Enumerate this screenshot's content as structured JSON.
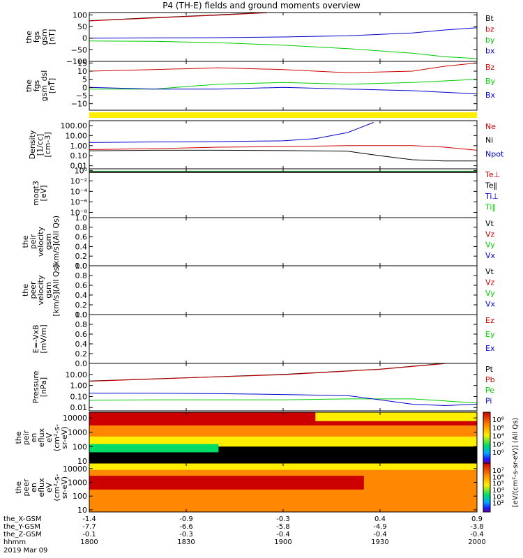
{
  "title": "P4 (TH-E) fields and ground moments overview",
  "x_axis": {
    "rows": [
      {
        "label": "the_X-GSM",
        "values": [
          "-1.4",
          "-0.9",
          "-0.3",
          "0.4",
          "0.9"
        ]
      },
      {
        "label": "the_Y-GSM",
        "values": [
          "-7.7",
          "-6.6",
          "-5.8",
          "-4.9",
          "-3.8"
        ]
      },
      {
        "label": "the_Z-GSM",
        "values": [
          "-0.1",
          "-0.3",
          "-0.4",
          "-0.4",
          "-0.4"
        ]
      },
      {
        "label": "hhmm",
        "values": [
          "1800",
          "1830",
          "1900",
          "1930",
          "2000"
        ]
      }
    ],
    "date": "2019 Mar 09",
    "tick_minutes": [
      0,
      30,
      60,
      90,
      120
    ]
  },
  "colorbar": {
    "label": "[eV/(cm²-s-sr-eV)] (All Qs)",
    "ticks_top": [
      "10⁸",
      "10⁶",
      "10⁴",
      "10²",
      "10⁰"
    ],
    "ticks_bottom": [
      "10⁷",
      "10⁶",
      "10⁵",
      "10⁴",
      "10³",
      "10²"
    ],
    "colors": {
      "max": "#cc0000",
      "high": "#ff8800",
      "mid": "#ffee00",
      "low": "#00dd66",
      "lower": "#00aaff",
      "min": "#1a1aff",
      "bottom": "#6a00a8"
    }
  },
  "chart_data": [
    {
      "type": "line",
      "ylabel": "the fgs gsm [nT]",
      "ylim": [
        -100,
        110
      ],
      "yticks": [
        100,
        50,
        0,
        -50,
        -100
      ],
      "ytick_labels": [
        "100",
        "50",
        "0",
        "−50",
        "−100"
      ],
      "series": [
        {
          "name": "Bt",
          "color": "#000000",
          "x": [
            0,
            20,
            40,
            55
          ],
          "y": [
            75,
            88,
            100,
            110
          ]
        },
        {
          "name": "bz",
          "color": "#cc0000",
          "x": [
            0,
            20,
            40,
            55
          ],
          "y": [
            74,
            87,
            99,
            109
          ]
        },
        {
          "name": "by",
          "color": "#00cc00",
          "x": [
            0,
            20,
            40,
            60,
            80,
            100,
            110,
            120
          ],
          "y": [
            -12,
            -14,
            -20,
            -30,
            -45,
            -65,
            -80,
            -88
          ]
        },
        {
          "name": "bx",
          "color": "#0000cc",
          "x": [
            0,
            20,
            40,
            60,
            80,
            100,
            110,
            120
          ],
          "y": [
            0,
            1,
            2,
            5,
            10,
            22,
            35,
            45
          ]
        }
      ]
    },
    {
      "type": "line",
      "ylabel": "the fgs gsm_dsl [nT]",
      "ylim": [
        -14,
        16
      ],
      "yticks": [
        15,
        10,
        5,
        0,
        -5,
        -10
      ],
      "ytick_labels": [
        "15",
        "10",
        "5",
        "0",
        "−5",
        "−10"
      ],
      "series": [
        {
          "name": "Bz",
          "color": "#cc0000",
          "x": [
            0,
            20,
            40,
            60,
            80,
            100,
            110,
            120
          ],
          "y": [
            10,
            11,
            12,
            11,
            9,
            10,
            13,
            15
          ]
        },
        {
          "name": "By",
          "color": "#00cc00",
          "x": [
            0,
            20,
            40,
            60,
            80,
            100,
            110,
            120
          ],
          "y": [
            -1,
            -1,
            2,
            3,
            2,
            3,
            4,
            5
          ]
        },
        {
          "name": "Bx",
          "color": "#0000cc",
          "x": [
            0,
            20,
            40,
            60,
            80,
            100,
            110,
            120
          ],
          "y": [
            0,
            -1,
            -1,
            0,
            -1,
            -2,
            -3,
            -4
          ]
        }
      ]
    },
    {
      "type": "line",
      "ylabel": "Density [1/cc] [cm-3]",
      "yscale": "log",
      "ylim": [
        0.005,
        300
      ],
      "yticks": [
        100,
        10,
        1,
        0.1,
        0.01
      ],
      "ytick_labels": [
        "100.00",
        "10.00",
        "1.00",
        "0.10",
        "0.01"
      ],
      "series": [
        {
          "name": "Ne",
          "color": "#cc0000",
          "x": [
            0,
            20,
            40,
            60,
            80,
            100,
            110,
            120
          ],
          "y": [
            0.4,
            0.5,
            0.7,
            0.8,
            1.0,
            1.0,
            0.7,
            0.35
          ]
        },
        {
          "name": "Ni",
          "color": "#000000",
          "x": [
            0,
            20,
            40,
            60,
            80,
            90,
            100,
            110,
            120
          ],
          "y": [
            0.3,
            0.35,
            0.35,
            0.32,
            0.28,
            0.1,
            0.04,
            0.03,
            0.03
          ]
        },
        {
          "name": "Npot",
          "color": "#0000cc",
          "x": [
            0,
            20,
            40,
            60,
            70,
            80,
            88
          ],
          "y": [
            2,
            2.3,
            2.5,
            3,
            5,
            20,
            200
          ]
        }
      ]
    },
    {
      "type": "line",
      "ylabel": "moqt3 [eV]",
      "yscale": "log",
      "ylim": [
        1e-09,
        2
      ],
      "yticks": [
        1,
        0.01,
        0.0001,
        1e-06,
        1e-08
      ],
      "ytick_labels": [
        "10⁰",
        "10⁻²",
        "10⁻⁴",
        "10⁻⁶",
        "10⁻⁸"
      ],
      "series": [
        {
          "name": "Te⊥",
          "color": "#cc0000",
          "x": [
            0,
            120
          ],
          "y": [
            0.5,
            0.5
          ]
        },
        {
          "name": "Te‖",
          "color": "#000000",
          "x": [
            0,
            120
          ],
          "y": [
            0.4,
            0.4
          ]
        },
        {
          "name": "Ti⊥",
          "color": "#0000cc",
          "x": [
            0,
            120
          ],
          "y": [
            0.6,
            0.6
          ]
        },
        {
          "name": "Ti‖",
          "color": "#00cc00",
          "x": [
            0,
            120
          ],
          "y": [
            0.7,
            0.7
          ]
        }
      ]
    },
    {
      "type": "line",
      "ylabel": "the peir velocity gsm [km/s] (All Qs)",
      "ylim": [
        0,
        1
      ],
      "yticks": [
        1.0,
        0.8,
        0.6,
        0.4,
        0.2,
        0.0
      ],
      "ytick_labels": [
        "1.0",
        "0.8",
        "0.6",
        "0.4",
        "0.2",
        "0.0"
      ],
      "series": [
        {
          "name": "Vt",
          "color": "#000000",
          "x": [],
          "y": []
        },
        {
          "name": "Vz",
          "color": "#cc0000",
          "x": [],
          "y": []
        },
        {
          "name": "Vy",
          "color": "#00cc00",
          "x": [],
          "y": []
        },
        {
          "name": "Vx",
          "color": "#0000cc",
          "x": [],
          "y": []
        }
      ]
    },
    {
      "type": "line",
      "ylabel": "the peer velocity gsm [km/s] (All Qs)",
      "ylim": [
        0,
        1
      ],
      "yticks": [
        1.0,
        0.8,
        0.6,
        0.4,
        0.2,
        0.0
      ],
      "ytick_labels": [
        "1.0",
        "0.8",
        "0.6",
        "0.4",
        "0.2",
        "0.0"
      ],
      "series": [
        {
          "name": "Vt",
          "color": "#000000",
          "x": [],
          "y": []
        },
        {
          "name": "Vz",
          "color": "#cc0000",
          "x": [],
          "y": []
        },
        {
          "name": "Vy",
          "color": "#00cc00",
          "x": [],
          "y": []
        },
        {
          "name": "Vx",
          "color": "#0000cc",
          "x": [],
          "y": []
        }
      ]
    },
    {
      "type": "line",
      "ylabel": "E=-VxB [mV/m]",
      "ylim": [
        0,
        1
      ],
      "yticks": [
        1.0,
        0.8,
        0.6,
        0.4,
        0.2,
        0.0
      ],
      "ytick_labels": [
        "1.0",
        "0.8",
        "0.6",
        "0.4",
        "0.2",
        "0.0"
      ],
      "series": [
        {
          "name": "Ez",
          "color": "#cc0000",
          "x": [],
          "y": []
        },
        {
          "name": "Ey",
          "color": "#00cc00",
          "x": [],
          "y": []
        },
        {
          "name": "Ex",
          "color": "#0000cc",
          "x": [],
          "y": []
        }
      ]
    },
    {
      "type": "line",
      "ylabel": "Pressure [nPa]",
      "yscale": "log",
      "ylim": [
        0.005,
        100
      ],
      "yticks": [
        10,
        1,
        0.1,
        0.01
      ],
      "ytick_labels": [
        "10.00",
        "1.00",
        "0.10",
        "0.01"
      ],
      "series": [
        {
          "name": "Pt",
          "color": "#000000",
          "x": [
            0,
            30,
            60,
            90,
            110
          ],
          "y": [
            2.5,
            5,
            10,
            30,
            100
          ]
        },
        {
          "name": "Pb",
          "color": "#cc0000",
          "x": [
            0,
            30,
            60,
            90,
            110
          ],
          "y": [
            2.4,
            4.8,
            9.5,
            29,
            95
          ]
        },
        {
          "name": "Pe",
          "color": "#00cc00",
          "x": [
            0,
            20,
            40,
            60,
            80,
            100,
            110,
            120
          ],
          "y": [
            0.045,
            0.05,
            0.05,
            0.05,
            0.06,
            0.06,
            0.04,
            0.025
          ]
        },
        {
          "name": "Pi",
          "color": "#0000cc",
          "x": [
            0,
            20,
            40,
            60,
            80,
            90,
            100,
            110,
            120
          ],
          "y": [
            0.2,
            0.2,
            0.18,
            0.15,
            0.12,
            0.05,
            0.02,
            0.015,
            0.02
          ]
        }
      ]
    },
    {
      "type": "heatmap",
      "ylabel": "the peir en eflux eV (cm²-s-sr-eV)",
      "yscale": "log",
      "ylim": [
        7,
        25000
      ],
      "yticks": [
        10000,
        1000,
        100,
        10
      ],
      "ytick_labels": [
        "10000",
        "1000",
        "100",
        "10"
      ]
    },
    {
      "type": "heatmap",
      "ylabel": "the peer en eflux eV (cm²-s-sr-eV)",
      "yscale": "log",
      "ylim": [
        7,
        25000
      ],
      "yticks": [
        10000,
        1000,
        100,
        10
      ],
      "ytick_labels": [
        "10000",
        "1000",
        "100",
        "10"
      ]
    }
  ]
}
